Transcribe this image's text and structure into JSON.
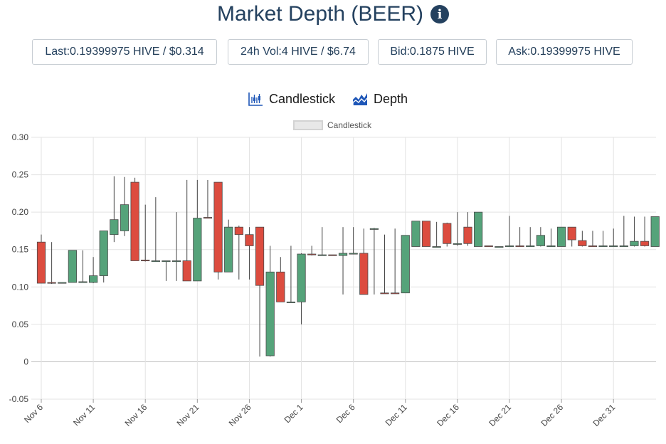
{
  "header": {
    "title": "Market Depth (BEER)",
    "info_icon": "info-circle-icon"
  },
  "stats": [
    {
      "label": "Last: ",
      "value": "0.19399975 HIVE / $0.314"
    },
    {
      "label": "24h Vol: ",
      "value": "4 HIVE / $6.74"
    },
    {
      "label": "Bid: ",
      "value": "0.1875 HIVE"
    },
    {
      "label": "Ask: ",
      "value": "0.19399975 HIVE"
    }
  ],
  "tabs": [
    {
      "label": "Candlestick",
      "icon": "candlestick-chart-icon"
    },
    {
      "label": "Depth",
      "icon": "depth-chart-icon"
    }
  ],
  "colors": {
    "up": "#55a37a",
    "down": "#dc4c3f",
    "wick": "#444444",
    "grid": "#e3e3e3",
    "text": "#24415f",
    "tab_icon": "#1e56b7"
  },
  "chart_data": {
    "type": "candlestick",
    "legend": {
      "label": "Candlestick",
      "position": "top-center"
    },
    "grid": true,
    "ylim": [
      -0.05,
      0.3
    ],
    "yticks": [
      "0.30",
      "0.25",
      "0.20",
      "0.15",
      "0.10",
      "0.05",
      "0",
      "-0.05"
    ],
    "ytick_values": [
      0.3,
      0.25,
      0.2,
      0.15,
      0.1,
      0.05,
      0,
      -0.05
    ],
    "xticks": [
      "Nov 6",
      "Nov 11",
      "Nov 16",
      "Nov 21",
      "Nov 26",
      "Dec 1",
      "Dec 6",
      "Dec 11",
      "Dec 16",
      "Dec 21",
      "Dec 26",
      "Dec 31"
    ],
    "xtick_index": [
      0,
      5,
      10,
      15,
      20,
      25,
      30,
      35,
      40,
      45,
      50,
      55
    ],
    "candles": [
      {
        "date": "Nov 6",
        "o": 0.16,
        "h": 0.17,
        "l": 0.105,
        "c": 0.105
      },
      {
        "date": "Nov 7",
        "o": 0.106,
        "h": 0.16,
        "l": 0.104,
        "c": 0.105
      },
      {
        "date": "Nov 8",
        "o": 0.106,
        "h": 0.106,
        "l": 0.105,
        "c": 0.106
      },
      {
        "date": "Nov 9",
        "o": 0.106,
        "h": 0.149,
        "l": 0.106,
        "c": 0.149
      },
      {
        "date": "Nov 10",
        "o": 0.106,
        "h": 0.149,
        "l": 0.106,
        "c": 0.107
      },
      {
        "date": "Nov 11",
        "o": 0.106,
        "h": 0.14,
        "l": 0.105,
        "c": 0.115
      },
      {
        "date": "Nov 12",
        "o": 0.115,
        "h": 0.175,
        "l": 0.106,
        "c": 0.175
      },
      {
        "date": "Nov 13",
        "o": 0.17,
        "h": 0.248,
        "l": 0.16,
        "c": 0.19
      },
      {
        "date": "Nov 14",
        "o": 0.175,
        "h": 0.247,
        "l": 0.168,
        "c": 0.21
      },
      {
        "date": "Nov 15",
        "o": 0.24,
        "h": 0.246,
        "l": 0.135,
        "c": 0.135
      },
      {
        "date": "Nov 16",
        "o": 0.136,
        "h": 0.21,
        "l": 0.134,
        "c": 0.135
      },
      {
        "date": "Nov 17",
        "o": 0.135,
        "h": 0.22,
        "l": 0.134,
        "c": 0.135
      },
      {
        "date": "Nov 18",
        "o": 0.135,
        "h": 0.135,
        "l": 0.108,
        "c": 0.135
      },
      {
        "date": "Nov 19",
        "o": 0.135,
        "h": 0.2,
        "l": 0.108,
        "c": 0.135
      },
      {
        "date": "Nov 20",
        "o": 0.135,
        "h": 0.243,
        "l": 0.108,
        "c": 0.108
      },
      {
        "date": "Nov 21",
        "o": 0.108,
        "h": 0.243,
        "l": 0.108,
        "c": 0.192
      },
      {
        "date": "Nov 22",
        "o": 0.193,
        "h": 0.243,
        "l": 0.192,
        "c": 0.192
      },
      {
        "date": "Nov 23",
        "o": 0.24,
        "h": 0.24,
        "l": 0.11,
        "c": 0.12
      },
      {
        "date": "Nov 24",
        "o": 0.12,
        "h": 0.19,
        "l": 0.12,
        "c": 0.18
      },
      {
        "date": "Nov 25",
        "o": 0.18,
        "h": 0.182,
        "l": 0.11,
        "c": 0.17
      },
      {
        "date": "Nov 26",
        "o": 0.17,
        "h": 0.18,
        "l": 0.11,
        "c": 0.155
      },
      {
        "date": "Nov 27",
        "o": 0.18,
        "h": 0.18,
        "l": 0.007,
        "c": 0.102
      },
      {
        "date": "Nov 28",
        "o": 0.008,
        "h": 0.155,
        "l": 0.007,
        "c": 0.12
      },
      {
        "date": "Nov 29",
        "o": 0.12,
        "h": 0.14,
        "l": 0.08,
        "c": 0.08
      },
      {
        "date": "Nov 30",
        "o": 0.08,
        "h": 0.155,
        "l": 0.079,
        "c": 0.08
      },
      {
        "date": "Dec 1",
        "o": 0.08,
        "h": 0.145,
        "l": 0.05,
        "c": 0.144
      },
      {
        "date": "Dec 2",
        "o": 0.144,
        "h": 0.155,
        "l": 0.142,
        "c": 0.143
      },
      {
        "date": "Dec 3",
        "o": 0.143,
        "h": 0.18,
        "l": 0.142,
        "c": 0.143
      },
      {
        "date": "Dec 4",
        "o": 0.143,
        "h": 0.143,
        "l": 0.142,
        "c": 0.142
      },
      {
        "date": "Dec 5",
        "o": 0.142,
        "h": 0.18,
        "l": 0.09,
        "c": 0.145
      },
      {
        "date": "Dec 6",
        "o": 0.145,
        "h": 0.18,
        "l": 0.144,
        "c": 0.145
      },
      {
        "date": "Dec 7",
        "o": 0.145,
        "h": 0.178,
        "l": 0.09,
        "c": 0.09
      },
      {
        "date": "Dec 8",
        "o": 0.178,
        "h": 0.179,
        "l": 0.09,
        "c": 0.178
      },
      {
        "date": "Dec 9",
        "o": 0.092,
        "h": 0.17,
        "l": 0.091,
        "c": 0.091
      },
      {
        "date": "Dec 10",
        "o": 0.092,
        "h": 0.178,
        "l": 0.091,
        "c": 0.091
      },
      {
        "date": "Dec 11",
        "o": 0.092,
        "h": 0.169,
        "l": 0.092,
        "c": 0.169
      },
      {
        "date": "Dec 12",
        "o": 0.154,
        "h": 0.188,
        "l": 0.154,
        "c": 0.188
      },
      {
        "date": "Dec 13",
        "o": 0.188,
        "h": 0.188,
        "l": 0.154,
        "c": 0.154
      },
      {
        "date": "Dec 14",
        "o": 0.154,
        "h": 0.187,
        "l": 0.154,
        "c": 0.154
      },
      {
        "date": "Dec 15",
        "o": 0.185,
        "h": 0.186,
        "l": 0.154,
        "c": 0.158
      },
      {
        "date": "Dec 16",
        "o": 0.158,
        "h": 0.2,
        "l": 0.155,
        "c": 0.158
      },
      {
        "date": "Dec 17",
        "o": 0.18,
        "h": 0.2,
        "l": 0.155,
        "c": 0.158
      },
      {
        "date": "Dec 18",
        "o": 0.154,
        "h": 0.2,
        "l": 0.154,
        "c": 0.2
      },
      {
        "date": "Dec 19",
        "o": 0.155,
        "h": 0.155,
        "l": 0.154,
        "c": 0.154
      },
      {
        "date": "Dec 20",
        "o": 0.154,
        "h": 0.154,
        "l": 0.154,
        "c": 0.154
      },
      {
        "date": "Dec 21",
        "o": 0.155,
        "h": 0.195,
        "l": 0.154,
        "c": 0.155
      },
      {
        "date": "Dec 22",
        "o": 0.155,
        "h": 0.18,
        "l": 0.154,
        "c": 0.154
      },
      {
        "date": "Dec 23",
        "o": 0.155,
        "h": 0.18,
        "l": 0.154,
        "c": 0.155
      },
      {
        "date": "Dec 24",
        "o": 0.155,
        "h": 0.18,
        "l": 0.154,
        "c": 0.169
      },
      {
        "date": "Dec 25",
        "o": 0.155,
        "h": 0.178,
        "l": 0.154,
        "c": 0.155
      },
      {
        "date": "Dec 26",
        "o": 0.154,
        "h": 0.18,
        "l": 0.154,
        "c": 0.18
      },
      {
        "date": "Dec 27",
        "o": 0.18,
        "h": 0.18,
        "l": 0.154,
        "c": 0.163
      },
      {
        "date": "Dec 28",
        "o": 0.162,
        "h": 0.175,
        "l": 0.154,
        "c": 0.155
      },
      {
        "date": "Dec 29",
        "o": 0.155,
        "h": 0.175,
        "l": 0.154,
        "c": 0.154
      },
      {
        "date": "Dec 30",
        "o": 0.154,
        "h": 0.175,
        "l": 0.154,
        "c": 0.155
      },
      {
        "date": "Dec 31",
        "o": 0.155,
        "h": 0.178,
        "l": 0.154,
        "c": 0.155
      },
      {
        "date": "Jan 1",
        "o": 0.155,
        "h": 0.195,
        "l": 0.154,
        "c": 0.155
      },
      {
        "date": "Jan 2",
        "o": 0.155,
        "h": 0.194,
        "l": 0.154,
        "c": 0.161
      },
      {
        "date": "Jan 3",
        "o": 0.161,
        "h": 0.194,
        "l": 0.154,
        "c": 0.155
      },
      {
        "date": "Jan 4",
        "o": 0.154,
        "h": 0.194,
        "l": 0.154,
        "c": 0.194
      }
    ]
  }
}
